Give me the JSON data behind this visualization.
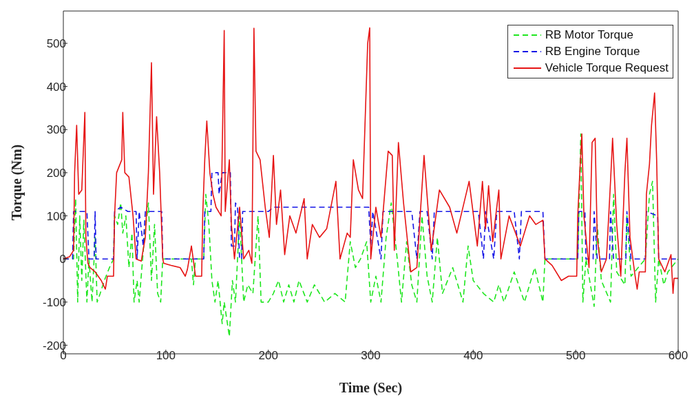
{
  "chart_data": {
    "type": "line",
    "xlabel": "Time (Sec)",
    "ylabel": "Torque (Nm)",
    "xlim": [
      0,
      600
    ],
    "xticks": [
      0,
      100,
      200,
      300,
      400,
      500,
      600
    ],
    "ylim": [
      -220,
      575
    ],
    "yticks": [
      -200,
      -100,
      0,
      100,
      200,
      300,
      400,
      500
    ],
    "legend": "top right",
    "marker": "none",
    "series": [
      {
        "name": "RB Motor Torque",
        "color": "#1ee61e",
        "line_style": "dashed",
        "x": [
          0,
          10,
          12,
          14,
          16,
          18,
          20,
          23,
          25,
          28,
          31,
          33,
          36,
          40,
          45,
          49,
          50,
          53,
          56,
          58,
          61,
          64,
          67,
          69,
          72,
          74,
          78,
          83,
          86,
          89,
          92,
          95,
          97,
          125,
          127,
          129,
          137,
          139,
          142,
          145,
          148,
          151,
          155,
          157,
          162,
          165,
          168,
          172,
          176,
          180,
          185,
          190,
          193,
          200,
          205,
          210,
          215,
          220,
          225,
          230,
          238,
          245,
          255,
          265,
          275,
          280,
          285,
          290,
          296,
          300,
          305,
          310,
          315,
          320,
          325,
          330,
          335,
          340,
          345,
          350,
          355,
          360,
          365,
          370,
          380,
          390,
          395,
          400,
          410,
          420,
          425,
          430,
          440,
          450,
          460,
          468,
          470,
          502,
          505,
          507,
          510,
          518,
          521,
          525,
          534,
          537,
          540,
          548,
          550,
          554,
          568,
          572,
          575,
          578,
          581,
          586,
          590,
          600
        ],
        "values": [
          0,
          0,
          140,
          -100,
          100,
          -50,
          90,
          -100,
          0,
          -100,
          50,
          -100,
          -80,
          -50,
          -20,
          0,
          100,
          80,
          130,
          60,
          100,
          -20,
          60,
          -100,
          -50,
          -100,
          20,
          130,
          -50,
          80,
          -80,
          -100,
          0,
          0,
          -60,
          0,
          0,
          150,
          80,
          -50,
          -100,
          -50,
          -150,
          -100,
          -180,
          -50,
          -100,
          100,
          -100,
          -60,
          -80,
          100,
          -100,
          -100,
          -80,
          -50,
          -100,
          -60,
          -100,
          -50,
          -100,
          -60,
          -100,
          -80,
          -100,
          40,
          -20,
          0,
          40,
          -100,
          -40,
          -100,
          50,
          130,
          20,
          -100,
          40,
          -60,
          -100,
          100,
          -40,
          -100,
          50,
          -80,
          -20,
          -100,
          30,
          -50,
          -80,
          -100,
          -60,
          -100,
          -30,
          -100,
          -20,
          -100,
          0,
          0,
          290,
          -100,
          0,
          -110,
          80,
          -50,
          -100,
          150,
          -30,
          -60,
          100,
          -40,
          0,
          150,
          180,
          -100,
          0,
          -60,
          -30,
          0
        ]
      },
      {
        "name": "RB Engine Torque",
        "color": "#1414e6",
        "line_style": "dashed",
        "x": [
          0,
          9,
          10,
          23,
          25,
          30,
          31,
          32,
          49,
          50,
          56,
          63,
          71,
          72,
          74,
          78,
          80,
          96,
          97,
          137,
          138,
          144,
          145,
          151,
          152,
          155,
          163,
          164,
          167,
          168,
          170,
          172,
          174,
          175,
          200,
          205,
          250,
          280,
          298,
          300,
          302,
          310,
          312,
          340,
          345,
          348,
          355,
          360,
          362,
          380,
          405,
          410,
          412,
          420,
          423,
          440,
          445,
          447,
          468,
          470,
          502,
          503,
          509,
          510,
          517,
          518,
          521,
          533,
          534,
          537,
          549,
          550,
          554,
          568,
          569,
          580,
          581,
          600
        ],
        "values": [
          0,
          0,
          110,
          110,
          0,
          0,
          110,
          0,
          0,
          110,
          120,
          110,
          110,
          0,
          110,
          30,
          110,
          110,
          0,
          0,
          110,
          110,
          200,
          200,
          150,
          200,
          200,
          30,
          30,
          130,
          120,
          0,
          0,
          110,
          110,
          120,
          120,
          120,
          120,
          30,
          110,
          0,
          110,
          110,
          0,
          110,
          110,
          0,
          110,
          110,
          110,
          0,
          110,
          0,
          110,
          110,
          0,
          110,
          110,
          0,
          0,
          110,
          110,
          0,
          0,
          110,
          0,
          0,
          110,
          0,
          0,
          110,
          0,
          0,
          110,
          100,
          0,
          0
        ]
      },
      {
        "name": "Vehicle Torque Request",
        "color": "#e61414",
        "line_style": "solid",
        "x": [
          0,
          6,
          10,
          11,
          13,
          15,
          18,
          21,
          22,
          24,
          26,
          31,
          37,
          41,
          43,
          49,
          50,
          52,
          57,
          58,
          60,
          64,
          68,
          71,
          76,
          80,
          83,
          86,
          88,
          91,
          94,
          97,
          98,
          105,
          114,
          119,
          121,
          125,
          129,
          135,
          136,
          138,
          140,
          143,
          146,
          149,
          154,
          157,
          158,
          162,
          164,
          167,
          172,
          176,
          181,
          184,
          186,
          188,
          192,
          197,
          201,
          205,
          208,
          212,
          216,
          221,
          227,
          235,
          238,
          243,
          250,
          257,
          266,
          270,
          277,
          280,
          283,
          288,
          292,
          297,
          299,
          300,
          305,
          310,
          317,
          321,
          323,
          327,
          332,
          339,
          345,
          352,
          359,
          367,
          377,
          384,
          396,
          404,
          409,
          412,
          415,
          419,
          425,
          427,
          435,
          446,
          455,
          461,
          468,
          470,
          477,
          486,
          493,
          501,
          502,
          504,
          506,
          508,
          513,
          516,
          519,
          521,
          525,
          530,
          534,
          536,
          540,
          544,
          548,
          550,
          553,
          558,
          560,
          562,
          568,
          569,
          572,
          574,
          577,
          579,
          581,
          587,
          593,
          595,
          596,
          600
        ],
        "values": [
          0,
          5,
          20,
          200,
          310,
          150,
          160,
          340,
          50,
          -10,
          -20,
          -30,
          -50,
          -70,
          -40,
          -40,
          100,
          200,
          230,
          340,
          200,
          190,
          100,
          0,
          -5,
          50,
          200,
          455,
          150,
          330,
          200,
          0,
          -10,
          -15,
          -20,
          -40,
          -25,
          30,
          -40,
          -40,
          100,
          230,
          320,
          200,
          150,
          120,
          100,
          530,
          110,
          230,
          80,
          0,
          120,
          0,
          20,
          -10,
          535,
          250,
          230,
          120,
          50,
          240,
          80,
          160,
          10,
          100,
          60,
          140,
          0,
          80,
          50,
          70,
          180,
          0,
          60,
          50,
          230,
          160,
          140,
          500,
          536,
          0,
          120,
          50,
          250,
          240,
          20,
          270,
          130,
          -30,
          -20,
          240,
          20,
          160,
          120,
          60,
          180,
          30,
          180,
          70,
          170,
          40,
          160,
          0,
          100,
          30,
          100,
          80,
          90,
          0,
          -15,
          -50,
          -40,
          -40,
          100,
          200,
          290,
          100,
          -20,
          270,
          280,
          50,
          -30,
          0,
          180,
          280,
          80,
          -40,
          200,
          280,
          50,
          -40,
          -70,
          -30,
          -30,
          150,
          220,
          310,
          385,
          230,
          0,
          -30,
          10,
          -80,
          -45,
          -45
        ]
      }
    ]
  }
}
